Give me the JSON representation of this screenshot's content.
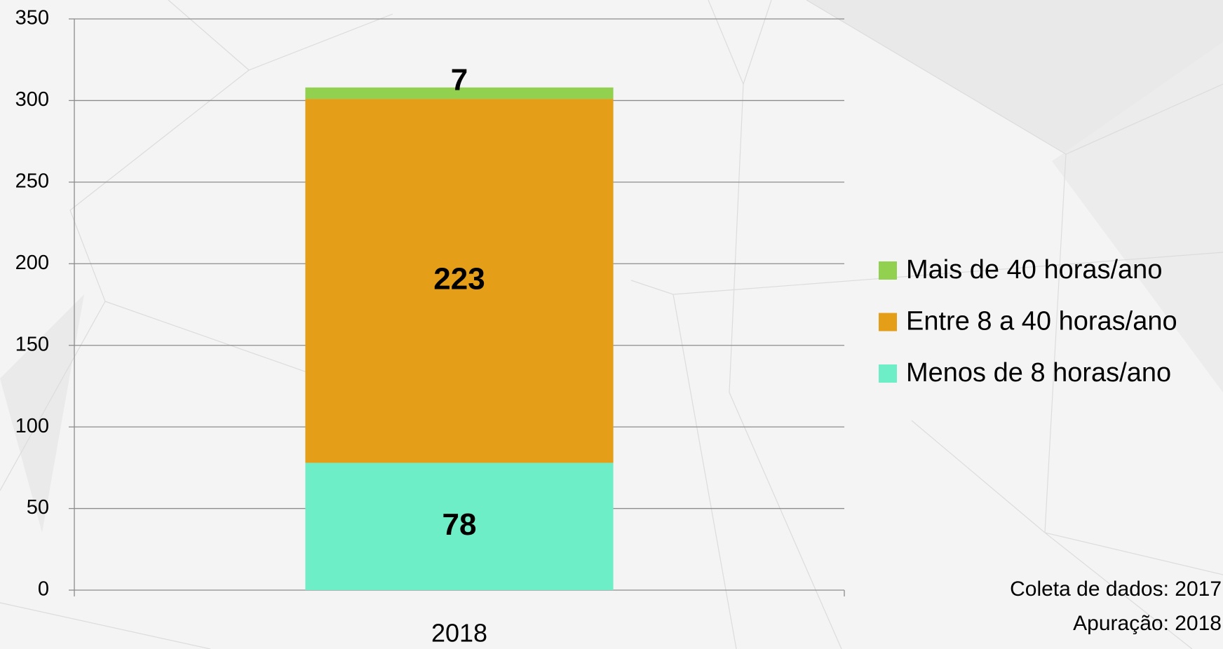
{
  "chart_data": {
    "type": "stacked_bar",
    "categories": [
      "2018"
    ],
    "series": [
      {
        "name": "Menos de 8 horas/ano",
        "color": "#6eeec6",
        "values": [
          78
        ]
      },
      {
        "name": "Entre 8 a 40 horas/ano",
        "color": "#e49e17",
        "values": [
          223
        ]
      },
      {
        "name": "Mais de 40 horas/ano",
        "color": "#92d050",
        "values": [
          7
        ]
      }
    ],
    "ylim": [
      0,
      350
    ],
    "yticks": [
      0,
      50,
      100,
      150,
      200,
      250,
      300,
      350
    ],
    "grid": true,
    "legend": "right",
    "annotations": [
      "Coleta de dados: 2017",
      "Apuração: 2018"
    ]
  }
}
